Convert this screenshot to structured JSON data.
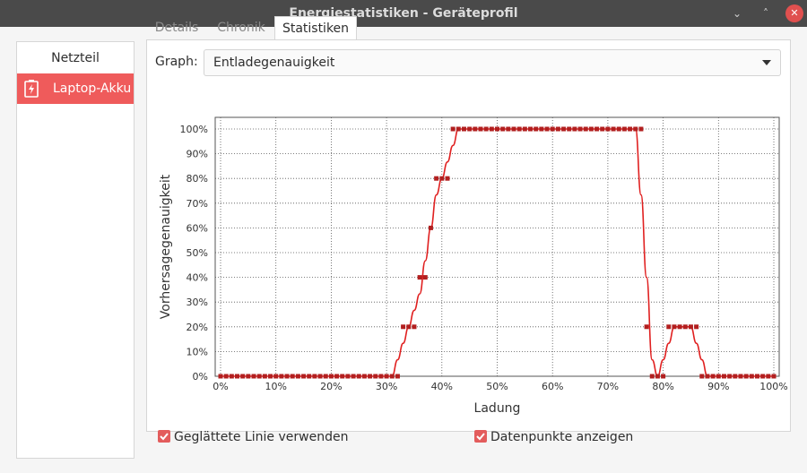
{
  "window": {
    "title": "Energiestatistiken - Geräteprofil",
    "controls": {
      "minimize": "⌄",
      "maximize": "˄",
      "close": "✕"
    }
  },
  "sidebar": {
    "items": [
      {
        "label": "Netzteil",
        "selected": false
      },
      {
        "label": "Laptop-Akku",
        "selected": true,
        "icon": "battery-charging-icon"
      }
    ]
  },
  "tabs": [
    {
      "label": "Details",
      "active": false
    },
    {
      "label": "Chronik",
      "active": false
    },
    {
      "label": "Statistiken",
      "active": true
    }
  ],
  "graph_select": {
    "label": "Graph:",
    "value": "Entladegenauigkeit"
  },
  "options": {
    "smoothed": {
      "label": "Geglättete Linie verwenden",
      "checked": true
    },
    "points": {
      "label": "Datenpunkte anzeigen",
      "checked": true
    }
  },
  "colors": {
    "accent": "#ef5b5b",
    "line": "#e02020",
    "points": "#b21f1f",
    "titlebar": "#4a4a4a"
  },
  "chart_data": {
    "type": "line",
    "xlabel": "Ladung",
    "ylabel": "Vorhersagegenauigkeit",
    "xlim": [
      0,
      100
    ],
    "ylim": [
      0,
      100
    ],
    "grid": true,
    "x_ticks": [
      "0%",
      "10%",
      "20%",
      "30%",
      "40%",
      "50%",
      "60%",
      "70%",
      "80%",
      "90%",
      "100%"
    ],
    "y_ticks": [
      "0%",
      "10%",
      "20%",
      "30%",
      "40%",
      "50%",
      "60%",
      "70%",
      "80%",
      "90%",
      "100%"
    ],
    "series": [
      {
        "smoothed": true,
        "show_points": true,
        "x": [
          0,
          1,
          2,
          3,
          4,
          5,
          6,
          7,
          8,
          9,
          10,
          11,
          12,
          13,
          14,
          15,
          16,
          17,
          18,
          19,
          20,
          21,
          22,
          23,
          24,
          25,
          26,
          27,
          28,
          29,
          30,
          31,
          32,
          33,
          34,
          35,
          36,
          37,
          38,
          39,
          40,
          41,
          42,
          43,
          44,
          45,
          46,
          47,
          48,
          49,
          50,
          51,
          52,
          53,
          54,
          55,
          56,
          57,
          58,
          59,
          60,
          61,
          62,
          63,
          64,
          65,
          66,
          67,
          68,
          69,
          70,
          71,
          72,
          73,
          74,
          75,
          76,
          77,
          78,
          79,
          80,
          81,
          82,
          83,
          84,
          85,
          86,
          87,
          88,
          89,
          90,
          91,
          92,
          93,
          94,
          95,
          96,
          97,
          98,
          99,
          100
        ],
        "y": [
          0,
          0,
          0,
          0,
          0,
          0,
          0,
          0,
          0,
          0,
          0,
          0,
          0,
          0,
          0,
          0,
          0,
          0,
          0,
          0,
          0,
          0,
          0,
          0,
          0,
          0,
          0,
          0,
          0,
          0,
          0,
          0,
          0,
          20,
          20,
          20,
          40,
          40,
          60,
          80,
          80,
          80,
          100,
          100,
          100,
          100,
          100,
          100,
          100,
          100,
          100,
          100,
          100,
          100,
          100,
          100,
          100,
          100,
          100,
          100,
          100,
          100,
          100,
          100,
          100,
          100,
          100,
          100,
          100,
          100,
          100,
          100,
          100,
          100,
          100,
          100,
          100,
          20,
          0,
          0,
          0,
          20,
          20,
          20,
          20,
          20,
          20,
          0,
          0,
          0,
          0,
          0,
          0,
          0,
          0,
          0,
          0,
          0,
          0,
          0,
          0
        ]
      }
    ]
  }
}
